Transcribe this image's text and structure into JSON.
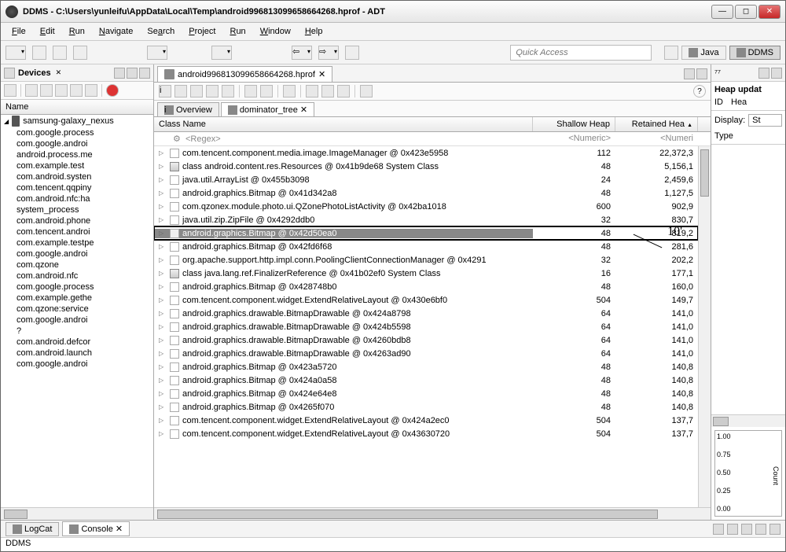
{
  "window": {
    "title": "DDMS - C:\\Users\\yunleifu\\AppData\\Local\\Temp\\android996813099658664268.hprof - ADT"
  },
  "menus": [
    "File",
    "Edit",
    "Run",
    "Navigate",
    "Search",
    "Project",
    "Run",
    "Window",
    "Help"
  ],
  "quickaccess_placeholder": "Quick Access",
  "perspectives": {
    "java": "Java",
    "ddms": "DDMS"
  },
  "devices": {
    "title": "Devices",
    "col": "Name",
    "root": "samsung-galaxy_nexus",
    "items": [
      "com.google.process",
      "com.google.androi",
      "android.process.me",
      "com.example.test",
      "com.android.systen",
      "com.tencent.qqpiny",
      "com.android.nfc:ha",
      "system_process",
      "com.android.phone",
      "com.tencent.androi",
      "com.example.testpe",
      "com.google.androi",
      "com.qzone",
      "com.android.nfc",
      "com.google.process",
      "com.example.gethe",
      "com.qzone:service",
      "com.google.androi",
      "?",
      "com.android.defcor",
      "com.android.launch",
      "com.google.androi"
    ]
  },
  "editor": {
    "filename": "android996813099658664268.hprof",
    "subtabs": {
      "overview": "Overview",
      "dominator": "dominator_tree"
    },
    "columns": {
      "classname": "Class Name",
      "shallow": "Shallow Heap",
      "retained": "Retained Hea"
    },
    "filter": {
      "regex": "<Regex>",
      "numeric": "<Numeric>",
      "numeric2": "<Numeri"
    },
    "callout": "10'",
    "rows": [
      {
        "icon": "f",
        "name": "com.tencent.component.media.image.ImageManager @ 0x423e5958",
        "s": "112",
        "r": "22,372,3"
      },
      {
        "icon": "c",
        "name": "class android.content.res.Resources @ 0x41b9de68 System Class",
        "s": "48",
        "r": "5,156,1"
      },
      {
        "icon": "f",
        "name": "java.util.ArrayList @ 0x455b3098",
        "s": "24",
        "r": "2,459,6"
      },
      {
        "icon": "f",
        "name": "android.graphics.Bitmap @ 0x41d342a8",
        "s": "48",
        "r": "1,127,5"
      },
      {
        "icon": "f",
        "name": "com.qzonex.module.photo.ui.QZonePhotoListActivity @ 0x42ba1018",
        "s": "600",
        "r": "902,9"
      },
      {
        "icon": "f",
        "name": "java.util.zip.ZipFile @ 0x4292ddb0",
        "s": "32",
        "r": "830,7"
      },
      {
        "icon": "f",
        "name": "android.graphics.Bitmap @ 0x42d50ea0",
        "s": "48",
        "r": "819,2",
        "hl": true
      },
      {
        "icon": "f",
        "name": "android.graphics.Bitmap @ 0x42fd6f68",
        "s": "48",
        "r": "281,6"
      },
      {
        "icon": "f",
        "name": "org.apache.support.http.impl.conn.PoolingClientConnectionManager @ 0x4291",
        "s": "32",
        "r": "202,2"
      },
      {
        "icon": "c",
        "name": "class java.lang.ref.FinalizerReference @ 0x41b02ef0 System Class",
        "s": "16",
        "r": "177,1"
      },
      {
        "icon": "f",
        "name": "android.graphics.Bitmap @ 0x428748b0",
        "s": "48",
        "r": "160,0"
      },
      {
        "icon": "f",
        "name": "com.tencent.component.widget.ExtendRelativeLayout @ 0x430e6bf0",
        "s": "504",
        "r": "149,7"
      },
      {
        "icon": "f",
        "name": "android.graphics.drawable.BitmapDrawable @ 0x424a8798",
        "s": "64",
        "r": "141,0"
      },
      {
        "icon": "f",
        "name": "android.graphics.drawable.BitmapDrawable @ 0x424b5598",
        "s": "64",
        "r": "141,0"
      },
      {
        "icon": "f",
        "name": "android.graphics.drawable.BitmapDrawable @ 0x4260bdb8",
        "s": "64",
        "r": "141,0"
      },
      {
        "icon": "f",
        "name": "android.graphics.drawable.BitmapDrawable @ 0x4263ad90",
        "s": "64",
        "r": "141,0"
      },
      {
        "icon": "f",
        "name": "android.graphics.Bitmap @ 0x423a5720",
        "s": "48",
        "r": "140,8"
      },
      {
        "icon": "f",
        "name": "android.graphics.Bitmap @ 0x424a0a58",
        "s": "48",
        "r": "140,8"
      },
      {
        "icon": "f",
        "name": "android.graphics.Bitmap @ 0x424e64e8",
        "s": "48",
        "r": "140,8"
      },
      {
        "icon": "f",
        "name": "android.graphics.Bitmap @ 0x4265f070",
        "s": "48",
        "r": "140,8"
      },
      {
        "icon": "f",
        "name": "com.tencent.component.widget.ExtendRelativeLayout @ 0x424a2ec0",
        "s": "504",
        "r": "137,7"
      },
      {
        "icon": "f",
        "name": "com.tencent.component.widget.ExtendRelativeLayout @ 0x43630720",
        "s": "504",
        "r": "137,7"
      }
    ]
  },
  "right": {
    "heap_title": "Heap updat",
    "cols": {
      "id": "ID",
      "hea": "Hea"
    },
    "display_label": "Display:",
    "display_value": "St",
    "type_label": "Type",
    "chart": {
      "yticks": [
        "1.00",
        "0.75",
        "0.50",
        "0.25",
        "0.00"
      ],
      "ylabel": "Count"
    }
  },
  "bottom": {
    "logcat": "LogCat",
    "console": "Console"
  },
  "status": "DDMS",
  "rightview_tab": "⁷⁷"
}
